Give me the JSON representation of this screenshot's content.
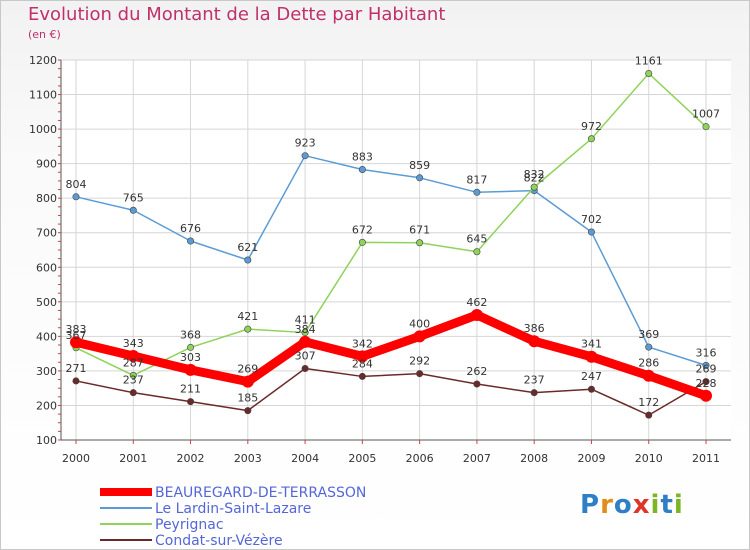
{
  "header": {
    "title": "Evolution du Montant de la Dette par Habitant",
    "unit": "(en €)"
  },
  "logo": {
    "text": "Proxiti",
    "colors": [
      "#2f7fc7",
      "#e48c1a",
      "#2f7fc7",
      "#e0332a",
      "#7cb624",
      "#2f7fc7",
      "#7cb624"
    ]
  },
  "chart_data": {
    "type": "line",
    "x": [
      "2000",
      "2001",
      "2002",
      "2003",
      "2004",
      "2005",
      "2006",
      "2007",
      "2008",
      "2009",
      "2010",
      "2011"
    ],
    "ylim": [
      100,
      1200
    ],
    "yticks": [
      100,
      200,
      300,
      400,
      500,
      600,
      700,
      800,
      900,
      1000,
      1100,
      1200
    ],
    "grid": true,
    "legend_position": "bottom-left",
    "series": [
      {
        "name": "BEAUREGARD-DE-TERRASSON",
        "color": "#ff0000",
        "width": 9,
        "values": [
          383,
          343,
          303,
          269,
          384,
          342,
          400,
          462,
          386,
          341,
          286,
          228
        ],
        "labels": [
          "383",
          "343",
          "303",
          "269",
          "384",
          "342",
          "400",
          "462",
          "386",
          "341",
          "286",
          "228"
        ]
      },
      {
        "name": "Le Lardin-Saint-Lazare",
        "color": "#5b9bd5",
        "width": 1.5,
        "values": [
          804,
          765,
          676,
          621,
          923,
          883,
          859,
          817,
          822,
          702,
          369,
          316
        ],
        "labels": [
          "804",
          "765",
          "676",
          "621",
          "923",
          "883",
          "859",
          "817",
          "822",
          "702",
          "369",
          "316"
        ]
      },
      {
        "name": "Peyrignac",
        "color": "#8fd35a",
        "width": 1.5,
        "values": [
          367,
          287,
          368,
          421,
          411,
          672,
          671,
          645,
          832,
          972,
          1161,
          1007
        ],
        "labels": [
          "367",
          "287",
          "368",
          "421",
          "411",
          "672",
          "671",
          "645",
          "832",
          "972",
          "1161",
          "1007"
        ]
      },
      {
        "name": "Condat-sur-Vézère",
        "color": "#6b2a2a",
        "width": 1.5,
        "values": [
          271,
          237,
          211,
          185,
          307,
          284,
          292,
          262,
          237,
          247,
          172,
          269
        ],
        "labels": [
          "271",
          "237",
          "211",
          "185",
          "307",
          "284",
          "292",
          "262",
          "237",
          "247",
          "172",
          "269"
        ]
      }
    ]
  }
}
